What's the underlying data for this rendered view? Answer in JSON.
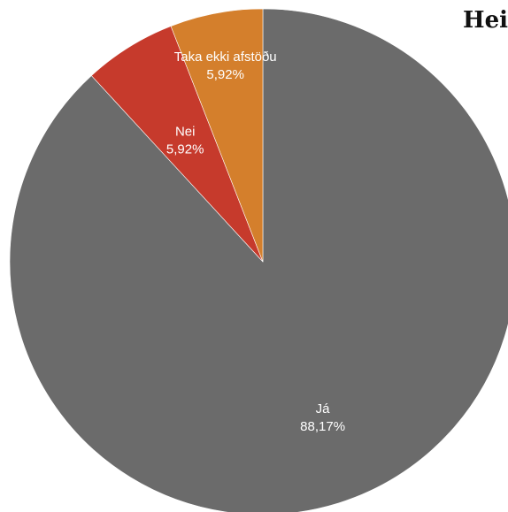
{
  "heading_fragment": "Hei",
  "chart_data": {
    "type": "pie",
    "title": "",
    "slices": [
      {
        "label": "Já",
        "value": 88.17,
        "value_label": "88,17%",
        "color": "#6b6b6b"
      },
      {
        "label": "Nei",
        "value": 5.92,
        "value_label": "5,92%",
        "color": "#c63a2c"
      },
      {
        "label": "Taka ekki afstöðu",
        "value": 5.92,
        "value_label": "5,92%",
        "color": "#d47f2c"
      }
    ],
    "start_angle_deg": 0,
    "direction": "clockwise"
  }
}
